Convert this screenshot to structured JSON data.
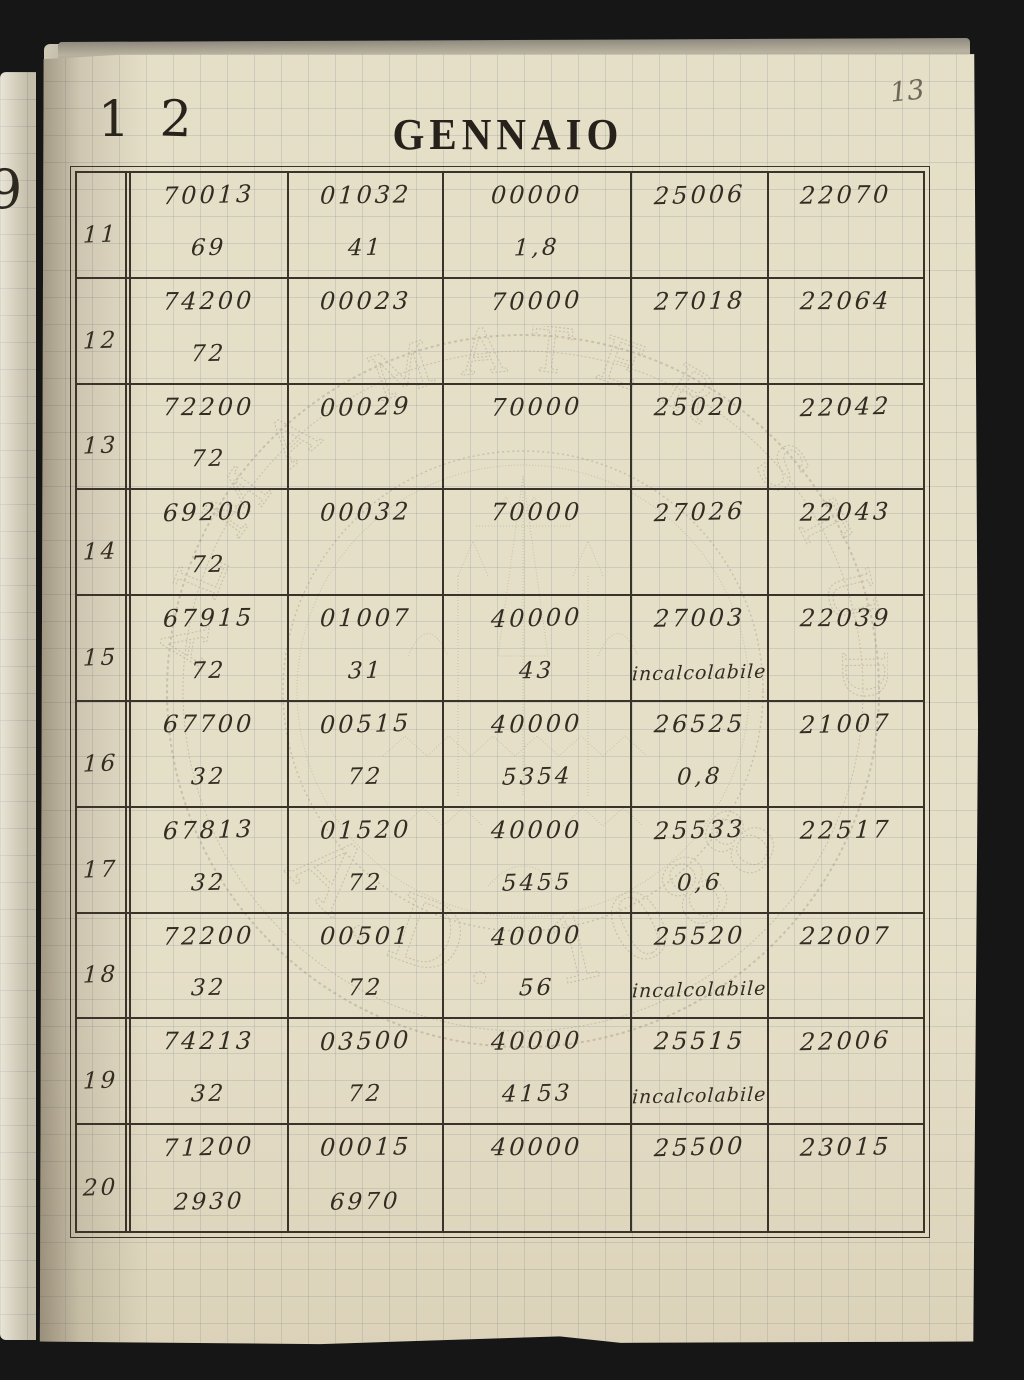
{
  "page": {
    "title": "GENNAIO",
    "page_number": "13",
    "stamp_left": "1",
    "stamp_right": "2",
    "prev_page_fragment": "9"
  },
  "watermark": {
    "ring_text": "ALMA MATER STUDIORUM",
    "year_text": "A.D. 1088"
  },
  "table": {
    "rows": [
      {
        "day": "11",
        "cols": [
          {
            "top": "70013",
            "bottom": "69"
          },
          {
            "top": "01032",
            "bottom": "41"
          },
          {
            "top": "00000",
            "bottom": "1,8"
          },
          {
            "top": "25006",
            "bottom": ""
          },
          {
            "top": "22070",
            "bottom": ""
          }
        ]
      },
      {
        "day": "12",
        "cols": [
          {
            "top": "74200",
            "bottom": "72"
          },
          {
            "top": "00023",
            "bottom": ""
          },
          {
            "top": "70000",
            "bottom": ""
          },
          {
            "top": "27018",
            "bottom": ""
          },
          {
            "top": "22064",
            "bottom": ""
          }
        ]
      },
      {
        "day": "13",
        "cols": [
          {
            "top": "72200",
            "bottom": "72"
          },
          {
            "top": "00029",
            "bottom": ""
          },
          {
            "top": "70000",
            "bottom": ""
          },
          {
            "top": "25020",
            "bottom": ""
          },
          {
            "top": "22042",
            "bottom": ""
          }
        ]
      },
      {
        "day": "14",
        "cols": [
          {
            "top": "69200",
            "bottom": "72"
          },
          {
            "top": "00032",
            "bottom": ""
          },
          {
            "top": "70000",
            "bottom": ""
          },
          {
            "top": "27026",
            "bottom": ""
          },
          {
            "top": "22043",
            "bottom": ""
          }
        ]
      },
      {
        "day": "15",
        "cols": [
          {
            "top": "67915",
            "bottom": "72"
          },
          {
            "top": "01007",
            "bottom": "31"
          },
          {
            "top": "40000",
            "bottom": "43"
          },
          {
            "top": "27003",
            "bottom": "incalcolabile"
          },
          {
            "top": "22039",
            "bottom": ""
          }
        ]
      },
      {
        "day": "16",
        "cols": [
          {
            "top": "67700",
            "bottom": "32"
          },
          {
            "top": "00515",
            "bottom": "72"
          },
          {
            "top": "40000",
            "bottom": "5354"
          },
          {
            "top": "26525",
            "bottom": "0,8"
          },
          {
            "top": "21007",
            "bottom": ""
          }
        ]
      },
      {
        "day": "17",
        "cols": [
          {
            "top": "67813",
            "bottom": "32"
          },
          {
            "top": "01520",
            "bottom": "72"
          },
          {
            "top": "40000",
            "bottom": "5455"
          },
          {
            "top": "25533",
            "bottom": "0,6"
          },
          {
            "top": "22517",
            "bottom": ""
          }
        ]
      },
      {
        "day": "18",
        "cols": [
          {
            "top": "72200",
            "bottom": "32"
          },
          {
            "top": "00501",
            "bottom": "72"
          },
          {
            "top": "40000",
            "bottom": "56"
          },
          {
            "top": "25520",
            "bottom": "incalcolabile"
          },
          {
            "top": "22007",
            "bottom": ""
          }
        ]
      },
      {
        "day": "19",
        "cols": [
          {
            "top": "74213",
            "bottom": "32"
          },
          {
            "top": "03500",
            "bottom": "72"
          },
          {
            "top": "40000",
            "bottom": "4153"
          },
          {
            "top": "25515",
            "bottom": "incalcolabile"
          },
          {
            "top": "22006",
            "bottom": ""
          }
        ]
      },
      {
        "day": "20",
        "cols": [
          {
            "top": "71200",
            "bottom": "2930"
          },
          {
            "top": "00015",
            "bottom": "6970"
          },
          {
            "top": "40000",
            "bottom": ""
          },
          {
            "top": "25500",
            "bottom": ""
          },
          {
            "top": "23015",
            "bottom": ""
          }
        ]
      }
    ]
  }
}
